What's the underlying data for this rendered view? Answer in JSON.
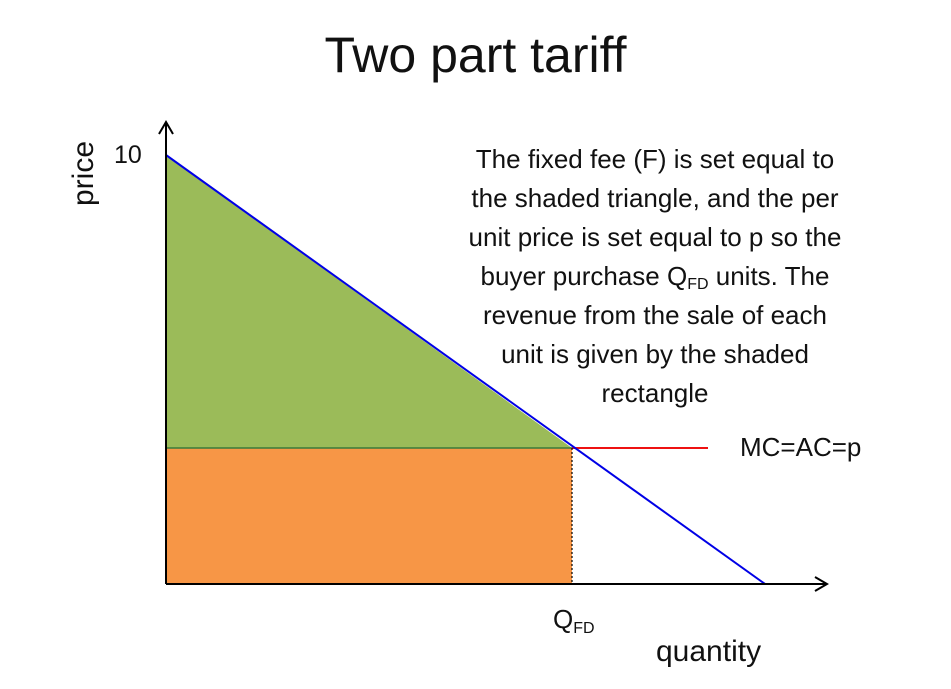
{
  "title": "Two part tariff",
  "description": {
    "line1": "The fixed fee (F) is set equal to",
    "line2": "the shaded triangle, and the per",
    "line3": "unit price is set equal to p so the",
    "line4_pre": "buyer purchase Q",
    "line4_sub": "FD",
    "line4_post": " units. The",
    "line5": "revenue from the sale of each",
    "line6": "unit is given by the shaded",
    "line7": "rectangle"
  },
  "axes": {
    "y_label": "price",
    "x_label": "quantity",
    "y_tick": "10",
    "x_tick_main": "Q",
    "x_tick_sub": "FD"
  },
  "mc_label": "MC=AC=p",
  "colors": {
    "triangle": "#9bbb59",
    "rectangle": "#f79646",
    "demand": "#0000e6",
    "mc": "#ee1111",
    "axis": "#000000"
  }
}
